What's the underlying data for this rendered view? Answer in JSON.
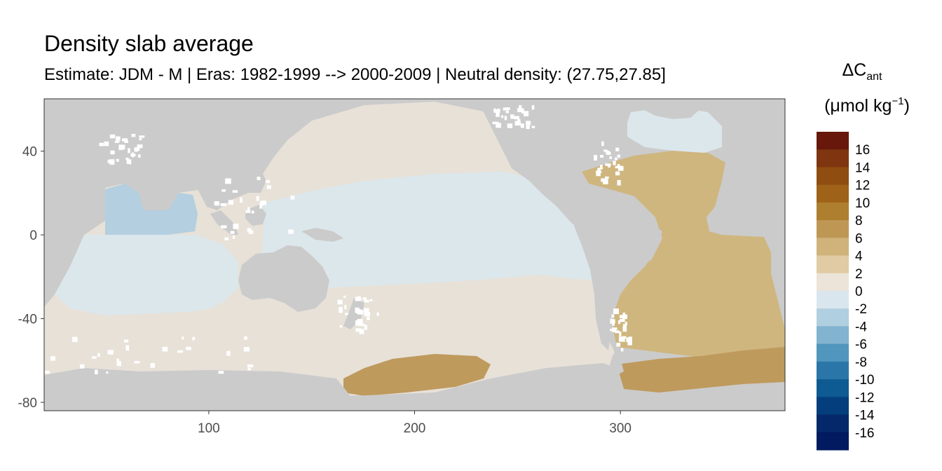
{
  "title": "Density slab average",
  "subtitle": "Estimate: JDM - M | Eras: 1982-1999 --> 2000-2009 | Neutral density: (27.75,27.85]",
  "x_axis": {
    "ticks": [
      100,
      200,
      300
    ],
    "tick_labels": [
      "100",
      "200",
      "300"
    ],
    "range": [
      20,
      380
    ]
  },
  "y_axis": {
    "ticks": [
      40,
      0,
      -40,
      -80
    ],
    "tick_labels": [
      "40",
      "0",
      "-40",
      "-80"
    ],
    "range": [
      -84,
      65
    ]
  },
  "legend": {
    "symbol": "ΔC",
    "subscript": "ant",
    "unit_open": "(μmol kg",
    "unit_sup": "−1",
    "unit_close": ")",
    "labels": [
      "16",
      "14",
      "12",
      "10",
      "8",
      "6",
      "4",
      "2",
      "0",
      "-2",
      "-4",
      "-6",
      "-8",
      "-10",
      "-12",
      "-14",
      "-16"
    ],
    "colors": [
      "#67180a",
      "#7e3510",
      "#8f4d0f",
      "#9e6218",
      "#ad7f2f",
      "#bf9755",
      "#cfb37a",
      "#e0cba4",
      "#ece4d8",
      "#dae6ee",
      "#b0cfe0",
      "#82b3cf",
      "#5096bd",
      "#2b76a8",
      "#0d5b92",
      "#053e7c",
      "#04286a",
      "#021a5f"
    ]
  },
  "colors": {
    "land": "#cbcbcb",
    "ocean_pacific": "#e7e1d8",
    "ocean_tropics": "#dce7ec",
    "indian_blue": "#b3cfe0",
    "atlantic_gold": "#cfb67e",
    "southern_gold": "#bf9a5d",
    "panel_border": "#333333"
  },
  "chart_data": {
    "type": "heatmap",
    "title": "Density slab average",
    "subtitle": "Estimate: JDM - M | Eras: 1982-1999 --> 2000-2009 | Neutral density: (27.75,27.85]",
    "x_ticks": [
      100,
      200,
      300
    ],
    "y_ticks": [
      40,
      0,
      -40,
      -80
    ],
    "xlim": [
      20,
      380
    ],
    "ylim": [
      -84,
      65
    ],
    "colorbar_breaks": [
      16,
      14,
      12,
      10,
      8,
      6,
      4,
      2,
      0,
      -2,
      -4,
      -6,
      -8,
      -10,
      -12,
      -14,
      -16
    ],
    "regions": [
      {
        "region": "North Pacific",
        "approx_value": 1
      },
      {
        "region": "Tropical/South Pacific",
        "approx_value": -1
      },
      {
        "region": "Indian Ocean (north)",
        "approx_value": -3
      },
      {
        "region": "Atlantic",
        "approx_value": 4
      },
      {
        "region": "Southern Ocean (Atlantic sector)",
        "approx_value": 7
      },
      {
        "region": "Subpolar North Atlantic",
        "approx_value": -3
      }
    ]
  }
}
